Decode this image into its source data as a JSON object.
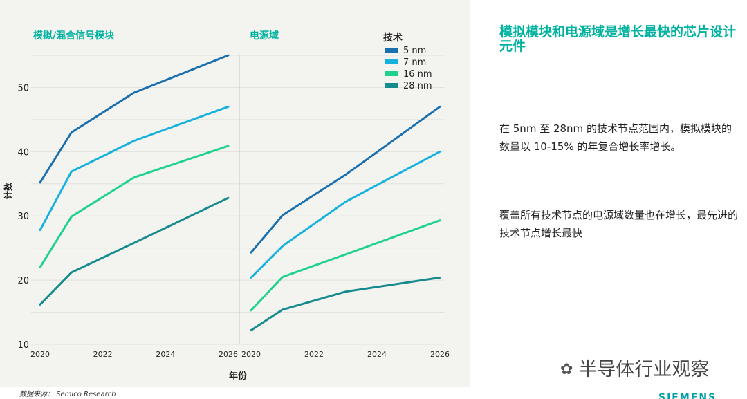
{
  "chart_data": {
    "type": "line",
    "ylabel": "计数",
    "xlabel": "年份",
    "ylim": [
      10,
      55
    ],
    "yticks": [
      10,
      20,
      30,
      40,
      50
    ],
    "xlim": [
      2020,
      2026
    ],
    "xticks": [
      2020,
      2022,
      2024,
      2026
    ],
    "grid": true,
    "legend": {
      "title": "技术",
      "position": "top-right",
      "entries": [
        "5 nm",
        "7 nm",
        "16 nm",
        "28 nm"
      ]
    },
    "panels": [
      {
        "title": "模拟/混合信号模块",
        "series": [
          {
            "name": "5 nm",
            "color": "#1a6fae",
            "points": [
              [
                2020,
                35.2
              ],
              [
                2021,
                43
              ],
              [
                2023,
                49.2
              ],
              [
                2026,
                55
              ]
            ]
          },
          {
            "name": "7 nm",
            "color": "#16b1dc",
            "points": [
              [
                2020,
                27.8
              ],
              [
                2021,
                36.9
              ],
              [
                2023,
                41.7
              ],
              [
                2026,
                47
              ]
            ]
          },
          {
            "name": "16 nm",
            "color": "#1fd28c",
            "points": [
              [
                2020,
                22
              ],
              [
                2021,
                29.9
              ],
              [
                2023,
                36
              ],
              [
                2026,
                40.9
              ]
            ]
          },
          {
            "name": "28 nm",
            "color": "#158b8e",
            "points": [
              [
                2020,
                16.2
              ],
              [
                2021,
                21.2
              ],
              [
                2023,
                25.8
              ],
              [
                2026,
                32.8
              ]
            ]
          }
        ]
      },
      {
        "title": "电源域",
        "series": [
          {
            "name": "5 nm",
            "color": "#1a6fae",
            "points": [
              [
                2020,
                24.3
              ],
              [
                2021,
                30.1
              ],
              [
                2023,
                36.4
              ],
              [
                2026,
                47
              ]
            ]
          },
          {
            "name": "7 nm",
            "color": "#16b1dc",
            "points": [
              [
                2020,
                20.4
              ],
              [
                2021,
                25.3
              ],
              [
                2023,
                32.2
              ],
              [
                2026,
                40
              ]
            ]
          },
          {
            "name": "16 nm",
            "color": "#1fd28c",
            "points": [
              [
                2020,
                15.3
              ],
              [
                2021,
                20.5
              ],
              [
                2023,
                24
              ],
              [
                2026,
                29.3
              ]
            ]
          },
          {
            "name": "28 nm",
            "color": "#158b8e",
            "points": [
              [
                2020,
                12.2
              ],
              [
                2021,
                15.4
              ],
              [
                2023,
                18.2
              ],
              [
                2026,
                20.4
              ]
            ]
          }
        ]
      }
    ]
  },
  "source_note": "数据来源：   Semico Research",
  "headline": "模拟模块和电源域是增长最快的芯片设计元件",
  "para1": "在 5nm 至 28nm 的技术节点范围内，模拟模块的数量以 10-15% 的年复合增长率增长。",
  "para2": "覆盖所有技术节点的电源域数量也在增长，最先进的技术节点增长最快",
  "watermark_icon": "wechat-icon",
  "watermark": "半导体行业观察",
  "brand": "SIEMENS",
  "colors": {
    "accent": "#00b2a0",
    "panel_bg": "#f3f3ef"
  }
}
